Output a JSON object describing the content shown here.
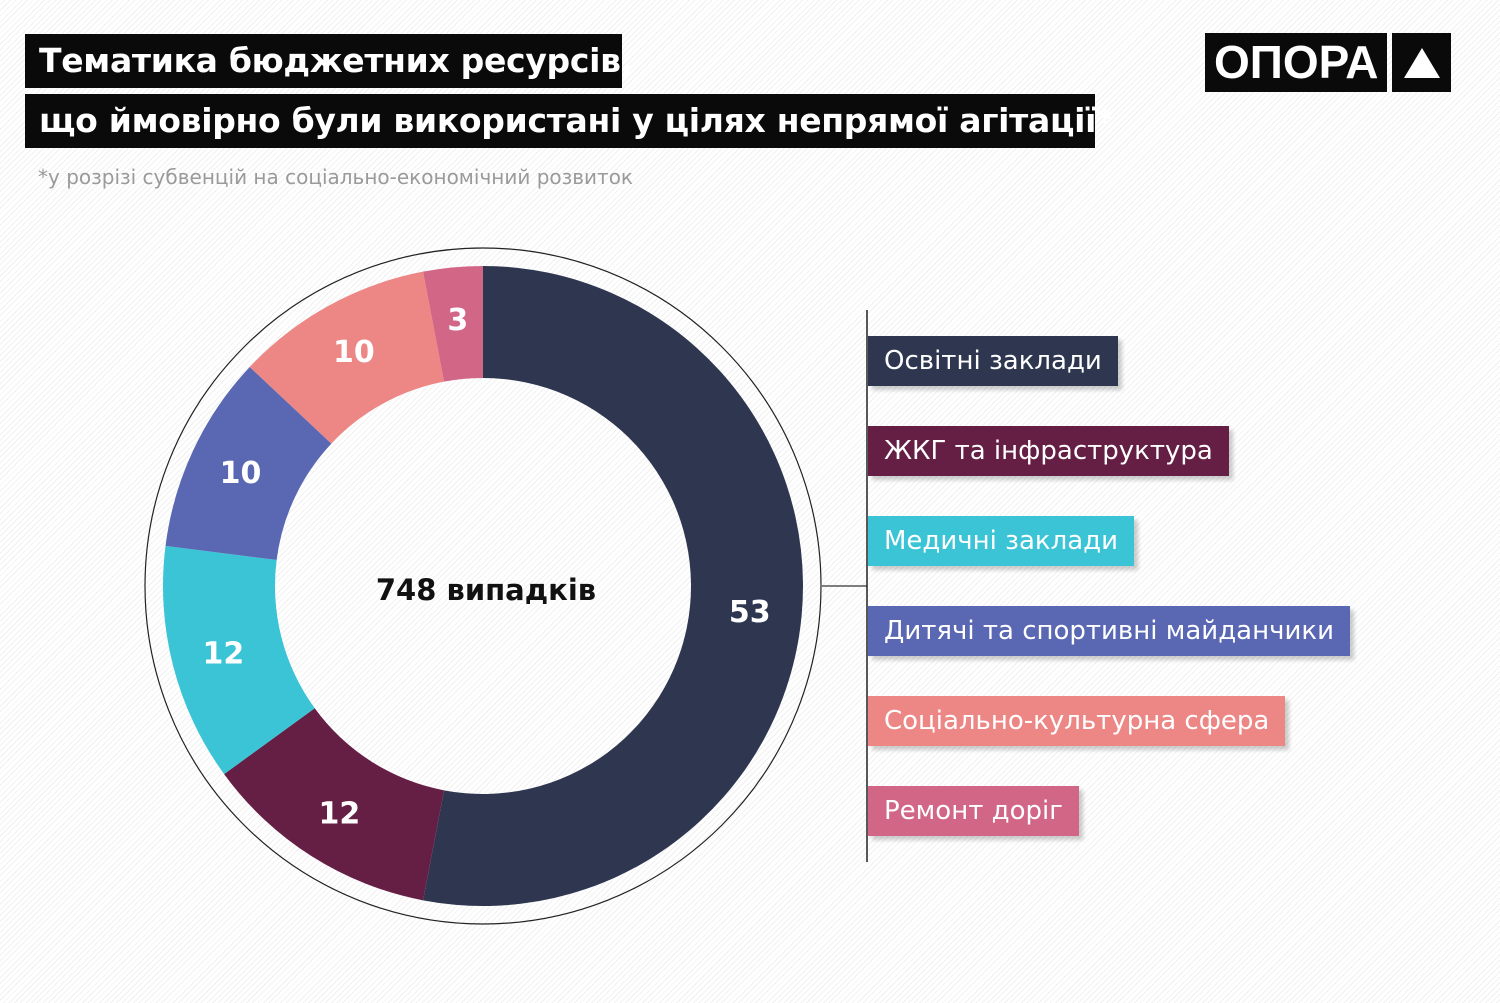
{
  "title_line1": "Тематика бюджетних ресурсів,",
  "title_line2": "що ймовірно були використані у цілях непрямої агітації*",
  "subtitle": "*у розрізі субвенцій на соціально-економічний розвиток",
  "logo_text": "ОПОРА",
  "chart_data": {
    "type": "pie",
    "variant": "donut",
    "center_label": "748 випадків",
    "unit": "%",
    "categories": [
      "Освітні заклади",
      "ЖКГ та інфраструктура",
      "Медичні заклади",
      "Дитячі та спортивні майданчики",
      "Соціально-культурна сфера",
      "Ремонт доріг"
    ],
    "values": [
      53,
      12,
      12,
      10,
      10,
      3
    ],
    "colors": [
      "#2e3650",
      "#651e44",
      "#3bc3d6",
      "#5a67b2",
      "#ec8785",
      "#d16687"
    ],
    "legend_position": "right"
  }
}
